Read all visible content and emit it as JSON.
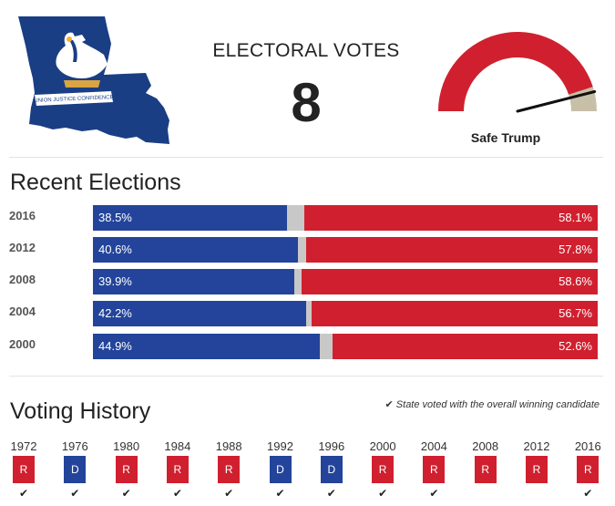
{
  "header": {
    "flag_motto": "UNION JUSTICE CONFIDENCE",
    "electoral_votes_label": "ELECTORAL VOTES",
    "electoral_votes": "8",
    "rating": "Safe Trump",
    "gauge_red_fraction": 0.9
  },
  "colors": {
    "dem": "#23449a",
    "rep": "#d0202f",
    "other": "#c8c8c8"
  },
  "recent": {
    "title": "Recent Elections",
    "rows": [
      {
        "year": "2016",
        "dem": 38.5,
        "rep": 58.1,
        "dem_label": "38.5%",
        "rep_label": "58.1%"
      },
      {
        "year": "2012",
        "dem": 40.6,
        "rep": 57.8,
        "dem_label": "40.6%",
        "rep_label": "57.8%"
      },
      {
        "year": "2008",
        "dem": 39.9,
        "rep": 58.6,
        "dem_label": "39.9%",
        "rep_label": "58.6%"
      },
      {
        "year": "2004",
        "dem": 42.2,
        "rep": 56.7,
        "dem_label": "42.2%",
        "rep_label": "56.7%"
      },
      {
        "year": "2000",
        "dem": 44.9,
        "rep": 52.6,
        "dem_label": "44.9%",
        "rep_label": "52.6%"
      }
    ]
  },
  "history": {
    "title": "Voting History",
    "legend": "State voted with the overall winning candidate",
    "check_icon": "check-icon",
    "items": [
      {
        "year": "1972",
        "party": "R",
        "winner": true
      },
      {
        "year": "1976",
        "party": "D",
        "winner": true
      },
      {
        "year": "1980",
        "party": "R",
        "winner": true
      },
      {
        "year": "1984",
        "party": "R",
        "winner": true
      },
      {
        "year": "1988",
        "party": "R",
        "winner": true
      },
      {
        "year": "1992",
        "party": "D",
        "winner": true
      },
      {
        "year": "1996",
        "party": "D",
        "winner": true
      },
      {
        "year": "2000",
        "party": "R",
        "winner": true
      },
      {
        "year": "2004",
        "party": "R",
        "winner": true
      },
      {
        "year": "2008",
        "party": "R",
        "winner": false
      },
      {
        "year": "2012",
        "party": "R",
        "winner": false
      },
      {
        "year": "2016",
        "party": "R",
        "winner": true
      }
    ]
  }
}
